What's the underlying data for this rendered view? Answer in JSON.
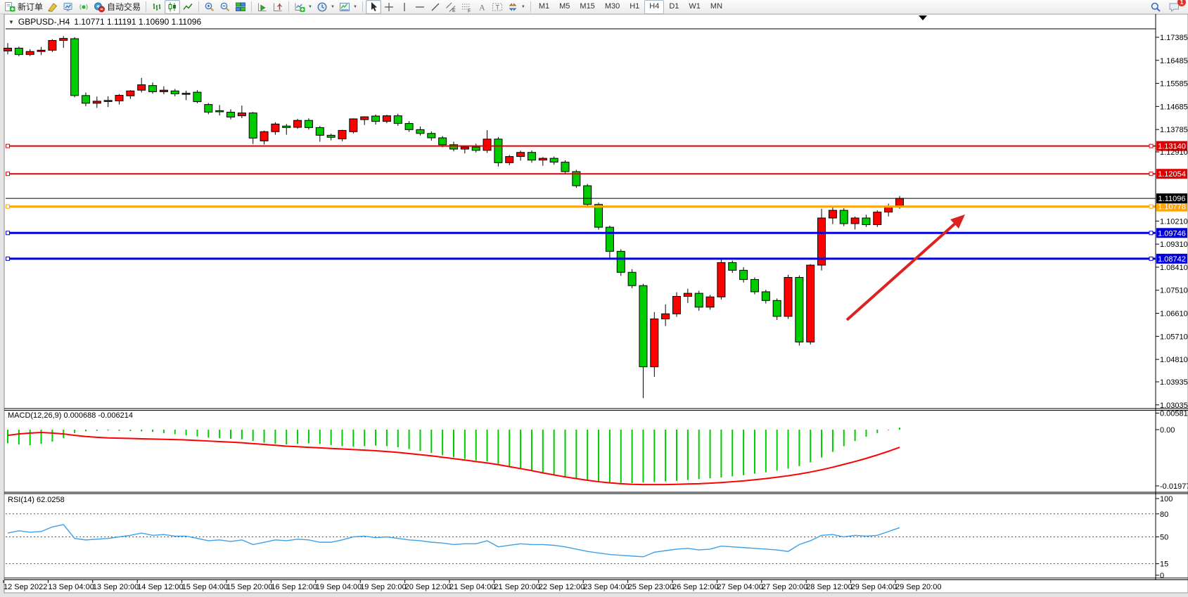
{
  "app": {
    "chat_badge": "1"
  },
  "toolbar": {
    "items": [
      {
        "type": "button",
        "icon": "new-order-icon",
        "label": "新订单"
      },
      {
        "type": "button",
        "icon": "mql-editor-icon"
      },
      {
        "type": "button",
        "icon": "market-watch-icon"
      },
      {
        "type": "button",
        "icon": "signals-icon"
      },
      {
        "type": "button",
        "icon": "auto-trading-icon",
        "label": "自动交易"
      },
      {
        "type": "separator"
      },
      {
        "type": "button",
        "icon": "bar-chart-icon"
      },
      {
        "type": "button",
        "icon": "candlestick-chart-icon",
        "pressed": true
      },
      {
        "type": "button",
        "icon": "line-chart-icon"
      },
      {
        "type": "separator"
      },
      {
        "type": "button",
        "icon": "zoom-in-icon"
      },
      {
        "type": "button",
        "icon": "zoom-out-icon"
      },
      {
        "type": "button",
        "icon": "tile-windows-icon"
      },
      {
        "type": "separator"
      },
      {
        "type": "button",
        "icon": "auto-scroll-icon"
      },
      {
        "type": "button",
        "icon": "chart-shift-icon"
      },
      {
        "type": "separator"
      },
      {
        "type": "button",
        "icon": "new-chart-icon",
        "dropdown": true
      },
      {
        "type": "button",
        "icon": "period-icon",
        "dropdown": true
      },
      {
        "type": "button",
        "icon": "template-icon",
        "dropdown": true
      },
      {
        "type": "separator"
      },
      {
        "type": "button",
        "icon": "cursor-icon",
        "pressed": true
      },
      {
        "type": "button",
        "icon": "crosshair-icon"
      },
      {
        "type": "button",
        "icon": "vertical-line-icon"
      },
      {
        "type": "button",
        "icon": "horizontal-line-icon"
      },
      {
        "type": "button",
        "icon": "trendline-icon"
      },
      {
        "type": "button",
        "icon": "equidistant-channel-icon"
      },
      {
        "type": "button",
        "icon": "fibonacci-icon"
      },
      {
        "type": "button",
        "icon": "text-icon"
      },
      {
        "type": "button",
        "icon": "text-label-icon"
      },
      {
        "type": "button",
        "icon": "arrows-icon",
        "dropdown": true
      },
      {
        "type": "separator"
      }
    ],
    "timeframes": [
      "M1",
      "M5",
      "M15",
      "M30",
      "H1",
      "H4",
      "D1",
      "W1",
      "MN"
    ],
    "active_timeframe": "H4"
  },
  "chart": {
    "symbol_period": "GBPUSD-,H4",
    "ohlc_text": "1.10771 1.11191 1.10690 1.11096"
  },
  "indicators": {
    "macd": {
      "label": "MACD(12,26,9) 0.000688 -0.006214",
      "axis": [
        {
          "text": "0.005818",
          "value": 0.005818
        },
        {
          "text": "0.00",
          "value": 0
        },
        {
          "text": "-0.01977",
          "value": -0.01977
        }
      ]
    },
    "rsi": {
      "label": "RSI(14) 62.0258",
      "axis": [
        {
          "text": "100",
          "value": 100,
          "dashed": false
        },
        {
          "text": "80",
          "value": 80,
          "dashed": true
        },
        {
          "text": "50",
          "value": 50,
          "dashed": true
        },
        {
          "text": "15",
          "value": 15,
          "dashed": true
        },
        {
          "text": "0",
          "value": 0,
          "dashed": false
        }
      ]
    }
  },
  "price_axis": {
    "ticks": [
      {
        "text": "1.17385",
        "value": 1.17385
      },
      {
        "text": "1.16485",
        "value": 1.16485
      },
      {
        "text": "1.15585",
        "value": 1.15585
      },
      {
        "text": "1.14685",
        "value": 1.14685
      },
      {
        "text": "1.13785",
        "value": 1.13785
      },
      {
        "text": "1.12910",
        "value": 1.1291
      },
      {
        "text": "1.10210",
        "value": 1.1021
      },
      {
        "text": "1.09310",
        "value": 1.0931
      },
      {
        "text": "1.08410",
        "value": 1.0841
      },
      {
        "text": "1.07510",
        "value": 1.0751
      },
      {
        "text": "1.06610",
        "value": 1.0661
      },
      {
        "text": "1.05710",
        "value": 1.0571
      },
      {
        "text": "1.04810",
        "value": 1.0481
      },
      {
        "text": "1.03935",
        "value": 1.03935
      },
      {
        "text": "1.03035",
        "value": 1.03035
      }
    ]
  },
  "time_axis": {
    "labels": [
      "12 Sep 2022",
      "13 Sep 04:00",
      "13 Sep 20:00",
      "14 Sep 12:00",
      "15 Sep 04:00",
      "15 Sep 20:00",
      "16 Sep 12:00",
      "19 Sep 04:00",
      "19 Sep 20:00",
      "20 Sep 12:00",
      "21 Sep 04:00",
      "21 Sep 20:00",
      "22 Sep 12:00",
      "23 Sep 04:00",
      "25 Sep 23:00",
      "26 Sep 12:00",
      "27 Sep 04:00",
      "27 Sep 20:00",
      "28 Sep 12:00",
      "29 Sep 04:00",
      "29 Sep 20:00"
    ]
  },
  "levels": [
    {
      "text": "1.13140",
      "value": 1.1314,
      "color": "#e00000",
      "width": 2
    },
    {
      "text": "1.12054",
      "value": 1.12054,
      "color": "#e00000",
      "width": 2
    },
    {
      "text": "1.10778",
      "value": 1.10778,
      "color": "#ffa500",
      "width": 3
    },
    {
      "text": "1.09746",
      "value": 1.09746,
      "color": "#0000e0",
      "width": 3
    },
    {
      "text": "1.08742",
      "value": 1.08742,
      "color": "#0000e0",
      "width": 3
    }
  ],
  "current_price": {
    "text": "1.11096",
    "value": 1.11096,
    "line_color": "#000000",
    "badge_bg": "#000000",
    "badge_fg": "#ffffff"
  },
  "annotations": {
    "trend_arrow": {
      "from": [
        1204,
        455
      ],
      "to": [
        1360,
        316
      ],
      "head": [
        [
          1372,
          305
        ],
        [
          1363,
          325
        ],
        [
          1351,
          312
        ]
      ],
      "color": "#dd2222",
      "width": 4
    }
  },
  "chart_data": {
    "type": "candlestick",
    "symbol": "GBPUSD-",
    "timeframe": "H4",
    "last_ohlc": {
      "open": "1.10771",
      "high": "1.11191",
      "low": "1.10690",
      "close": "1.11096"
    },
    "bull_color": "#ff0000",
    "bear_color": "#00cd00",
    "candles": [
      [
        1.1685,
        1.1716,
        1.1672,
        1.1696
      ],
      [
        1.1696,
        1.1702,
        1.1664,
        1.1671
      ],
      [
        1.1671,
        1.1692,
        1.1665,
        1.1683
      ],
      [
        1.1683,
        1.1701,
        1.1669,
        1.1688
      ],
      [
        1.1688,
        1.1731,
        1.1681,
        1.1726
      ],
      [
        1.1726,
        1.1743,
        1.1697,
        1.1734
      ],
      [
        1.1733,
        1.1739,
        1.1504,
        1.1511
      ],
      [
        1.1511,
        1.1523,
        1.1469,
        1.1481
      ],
      [
        1.1481,
        1.1507,
        1.1463,
        1.1489
      ],
      [
        1.1489,
        1.1508,
        1.1466,
        1.1492
      ],
      [
        1.149,
        1.1517,
        1.1476,
        1.1512
      ],
      [
        1.151,
        1.1532,
        1.1498,
        1.1529
      ],
      [
        1.1532,
        1.158,
        1.1523,
        1.1553
      ],
      [
        1.155,
        1.1562,
        1.1518,
        1.1526
      ],
      [
        1.1526,
        1.1547,
        1.1516,
        1.1532
      ],
      [
        1.1529,
        1.1537,
        1.1508,
        1.1518
      ],
      [
        1.1518,
        1.153,
        1.1493,
        1.152
      ],
      [
        1.1524,
        1.1532,
        1.1481,
        1.1487
      ],
      [
        1.1476,
        1.1482,
        1.1438,
        1.1446
      ],
      [
        1.1452,
        1.1474,
        1.1433,
        1.145
      ],
      [
        1.1446,
        1.1457,
        1.1418,
        1.1427
      ],
      [
        1.1432,
        1.1472,
        1.1423,
        1.1443
      ],
      [
        1.1443,
        1.1447,
        1.1322,
        1.1345
      ],
      [
        1.1334,
        1.1374,
        1.132,
        1.137
      ],
      [
        1.137,
        1.1407,
        1.1358,
        1.14
      ],
      [
        1.1392,
        1.14,
        1.1358,
        1.1386
      ],
      [
        1.1387,
        1.142,
        1.1381,
        1.1414
      ],
      [
        1.1414,
        1.1422,
        1.1378,
        1.1386
      ],
      [
        1.1386,
        1.1392,
        1.1331,
        1.1356
      ],
      [
        1.1356,
        1.1362,
        1.1336,
        1.1348
      ],
      [
        1.1342,
        1.1377,
        1.1333,
        1.1375
      ],
      [
        1.137,
        1.1422,
        1.1363,
        1.142
      ],
      [
        1.1417,
        1.143,
        1.1396,
        1.1428
      ],
      [
        1.1431,
        1.1437,
        1.1398,
        1.141
      ],
      [
        1.141,
        1.1436,
        1.1403,
        1.1432
      ],
      [
        1.1432,
        1.144,
        1.1393,
        1.1402
      ],
      [
        1.1402,
        1.1411,
        1.1369,
        1.1378
      ],
      [
        1.1378,
        1.139,
        1.1355,
        1.1363
      ],
      [
        1.1363,
        1.1371,
        1.1335,
        1.1346
      ],
      [
        1.1346,
        1.1353,
        1.1309,
        1.1319
      ],
      [
        1.1319,
        1.1331,
        1.1293,
        1.1302
      ],
      [
        1.1302,
        1.1316,
        1.1285,
        1.131
      ],
      [
        1.131,
        1.1323,
        1.1289,
        1.1297
      ],
      [
        1.1297,
        1.1376,
        1.1287,
        1.1341
      ],
      [
        1.1341,
        1.1349,
        1.1234,
        1.1249
      ],
      [
        1.1249,
        1.1279,
        1.1239,
        1.1273
      ],
      [
        1.1273,
        1.1296,
        1.1257,
        1.1289
      ],
      [
        1.1289,
        1.1297,
        1.1249,
        1.1259
      ],
      [
        1.1259,
        1.1271,
        1.1237,
        1.1266
      ],
      [
        1.1266,
        1.1273,
        1.1241,
        1.1251
      ],
      [
        1.1251,
        1.1258,
        1.1204,
        1.1214
      ],
      [
        1.1214,
        1.1221,
        1.1151,
        1.1159
      ],
      [
        1.1159,
        1.1166,
        1.1077,
        1.1086
      ],
      [
        1.1086,
        1.1093,
        1.0987,
        1.0997
      ],
      [
        1.0997,
        1.1003,
        1.0874,
        1.0903
      ],
      [
        1.0903,
        1.0911,
        1.0807,
        1.0821
      ],
      [
        1.0821,
        1.0833,
        1.0759,
        1.0769
      ],
      [
        1.0769,
        1.0776,
        1.033,
        1.0452
      ],
      [
        1.0452,
        1.0666,
        1.0413,
        1.0639
      ],
      [
        1.0639,
        1.0696,
        1.0611,
        1.0659
      ],
      [
        1.0659,
        1.0743,
        1.0647,
        1.0727
      ],
      [
        1.0727,
        1.0757,
        1.0701,
        1.0739
      ],
      [
        1.0739,
        1.0749,
        1.0671,
        1.0685
      ],
      [
        1.0685,
        1.0733,
        1.0675,
        1.0725
      ],
      [
        1.0725,
        1.0871,
        1.0715,
        1.0859
      ],
      [
        1.0859,
        1.0867,
        1.0819,
        1.0829
      ],
      [
        1.0829,
        1.0841,
        1.0781,
        1.0793
      ],
      [
        1.0793,
        1.0801,
        1.0735,
        1.0745
      ],
      [
        1.0745,
        1.0753,
        1.0699,
        1.0711
      ],
      [
        1.0711,
        1.0719,
        1.0635,
        1.0649
      ],
      [
        1.0649,
        1.0811,
        1.0639,
        1.0801
      ],
      [
        1.0801,
        1.0809,
        1.0535,
        1.0549
      ],
      [
        1.0549,
        1.0853,
        1.0539,
        1.0849
      ],
      [
        1.0849,
        1.1069,
        1.0828,
        1.1033
      ],
      [
        1.1033,
        1.1075,
        1.1009,
        1.1063
      ],
      [
        1.1063,
        1.1071,
        1.1001,
        1.1011
      ],
      [
        1.1011,
        1.1039,
        1.0988,
        1.1033
      ],
      [
        1.1033,
        1.1046,
        1.0998,
        1.1007
      ],
      [
        1.1007,
        1.1063,
        1.0998,
        1.1056
      ],
      [
        1.1056,
        1.1089,
        1.1039,
        1.1077
      ],
      [
        1.10771,
        1.11191,
        1.1069,
        1.11096
      ]
    ],
    "macd": {
      "hist_color": "#00cd00",
      "signal_color": "#ff0000",
      "histogram": [
        -0.0048,
        -0.0052,
        -0.0055,
        -0.005,
        -0.0042,
        -0.003,
        -0.0012,
        -0.0006,
        -0.0004,
        -0.0003,
        -0.0004,
        -0.0005,
        -0.0006,
        -0.0008,
        -0.0012,
        -0.0016,
        -0.002,
        -0.0024,
        -0.0028,
        -0.003,
        -0.0032,
        -0.0034,
        -0.004,
        -0.0046,
        -0.005,
        -0.0052,
        -0.005,
        -0.0048,
        -0.005,
        -0.0054,
        -0.0058,
        -0.006,
        -0.0058,
        -0.0056,
        -0.0058,
        -0.0062,
        -0.0068,
        -0.0075,
        -0.0082,
        -0.009,
        -0.0097,
        -0.0103,
        -0.0108,
        -0.0112,
        -0.012,
        -0.0128,
        -0.0135,
        -0.0142,
        -0.015,
        -0.0158,
        -0.0165,
        -0.0172,
        -0.0178,
        -0.0182,
        -0.0185,
        -0.0187,
        -0.0188,
        -0.0186,
        -0.0184,
        -0.0182,
        -0.018,
        -0.0177,
        -0.0174,
        -0.0171,
        -0.0168,
        -0.0164,
        -0.016,
        -0.0155,
        -0.015,
        -0.0144,
        -0.0137,
        -0.0128,
        -0.0115,
        -0.0098,
        -0.0078,
        -0.0058,
        -0.004,
        -0.0025,
        -0.0012,
        -0.0002,
        0.0007
      ],
      "signal": [
        -0.002,
        -0.0015,
        -0.0012,
        -0.001,
        -0.0012,
        -0.0015,
        -0.002,
        -0.0024,
        -0.0027,
        -0.0029,
        -0.003,
        -0.0031,
        -0.0032,
        -0.0033,
        -0.0034,
        -0.0035,
        -0.0036,
        -0.0038,
        -0.004,
        -0.0042,
        -0.0044,
        -0.0046,
        -0.0049,
        -0.0052,
        -0.0055,
        -0.0058,
        -0.006,
        -0.0062,
        -0.0064,
        -0.0066,
        -0.0068,
        -0.007,
        -0.0072,
        -0.0074,
        -0.0077,
        -0.008,
        -0.0084,
        -0.0088,
        -0.0092,
        -0.0097,
        -0.0102,
        -0.0107,
        -0.0112,
        -0.0117,
        -0.0123,
        -0.013,
        -0.0137,
        -0.0144,
        -0.0152,
        -0.0159,
        -0.0166,
        -0.0172,
        -0.0178,
        -0.0183,
        -0.0187,
        -0.019,
        -0.0192,
        -0.0193,
        -0.0193,
        -0.0193,
        -0.0192,
        -0.0191,
        -0.019,
        -0.0188,
        -0.0186,
        -0.0183,
        -0.018,
        -0.0176,
        -0.0172,
        -0.0167,
        -0.0162,
        -0.0156,
        -0.0149,
        -0.0141,
        -0.0132,
        -0.0122,
        -0.0112,
        -0.0101,
        -0.0089,
        -0.0076,
        -0.0062
      ]
    },
    "rsi": {
      "color": "#3da0e8",
      "values": [
        55,
        58,
        56,
        57,
        63,
        66,
        48,
        46,
        47,
        48,
        50,
        52,
        55,
        52,
        53,
        51,
        51,
        48,
        45,
        46,
        44,
        46,
        40,
        43,
        46,
        45,
        47,
        46,
        43,
        43,
        46,
        50,
        51,
        49,
        50,
        48,
        46,
        45,
        43,
        42,
        40,
        41,
        41,
        45,
        37,
        39,
        41,
        40,
        40,
        39,
        37,
        34,
        31,
        29,
        27,
        26,
        25,
        24,
        30,
        32,
        34,
        35,
        33,
        34,
        38,
        37,
        36,
        35,
        34,
        33,
        31,
        40,
        45,
        52,
        53,
        50,
        52,
        51,
        52,
        57,
        62
      ]
    }
  }
}
